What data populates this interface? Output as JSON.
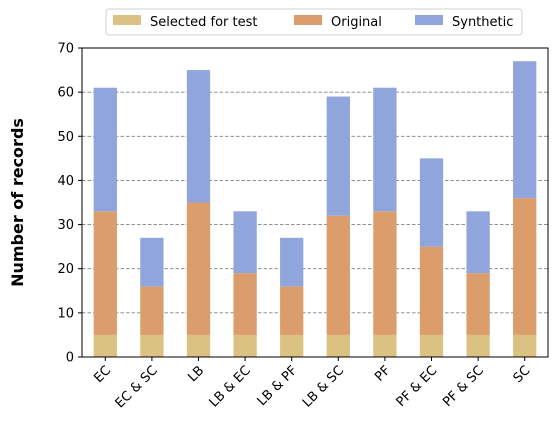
{
  "colors": {
    "selected": "#dcc282",
    "original": "#dc9d6d",
    "synthetic": "#8fa5dc",
    "grid": "#808080"
  },
  "chart_data": {
    "type": "bar",
    "stacked": true,
    "title": "",
    "xlabel": "",
    "ylabel": "Number of records",
    "ylim": [
      0,
      70
    ],
    "yticks": [
      0,
      10,
      20,
      30,
      40,
      50,
      60,
      70
    ],
    "grid": "horizontal dashed",
    "legend_position": "top-center",
    "categories": [
      "EC",
      "EC & SC",
      "LB",
      "LB & EC",
      "LB & PF",
      "LB & SC",
      "PF",
      "PF & EC",
      "PF & SC",
      "SC"
    ],
    "series": [
      {
        "name": "Selected for test",
        "values": [
          5,
          5,
          5,
          5,
          5,
          5,
          5,
          5,
          5,
          5
        ]
      },
      {
        "name": "Original",
        "values": [
          28,
          11,
          30,
          14,
          11,
          27,
          28,
          20,
          14,
          31
        ]
      },
      {
        "name": "Synthetic",
        "values": [
          28,
          11,
          30,
          14,
          11,
          27,
          28,
          20,
          14,
          31
        ]
      }
    ]
  }
}
